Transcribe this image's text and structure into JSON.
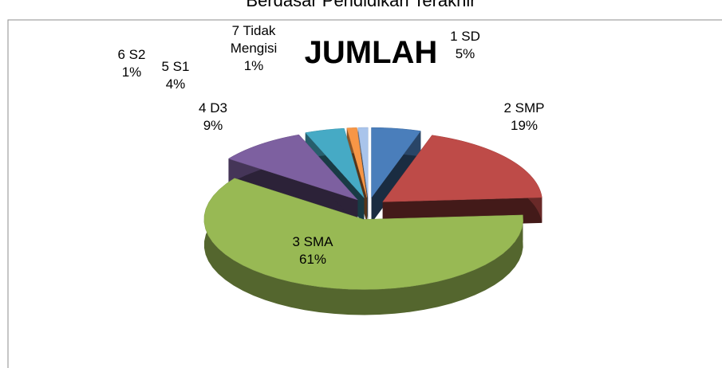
{
  "chart_data": {
    "type": "pie",
    "title": "Berdasar Pendidikan Terakhir",
    "subtitle": "JUMLAH",
    "categories": [
      "1 SD",
      "2 SMP",
      "3 SMA",
      "4 D3",
      "5 S1",
      "6 S2",
      "7 Tidak Mengisi"
    ],
    "values": [
      5,
      19,
      61,
      9,
      4,
      1,
      1
    ],
    "value_labels": [
      "5%",
      "19%",
      "61%",
      "9%",
      "4%",
      "1%",
      "1%"
    ],
    "colors": [
      "#4a7ebb",
      "#be4b48",
      "#98b954",
      "#7d60a0",
      "#46aac5",
      "#f79646",
      "#a9c4eb"
    ]
  }
}
